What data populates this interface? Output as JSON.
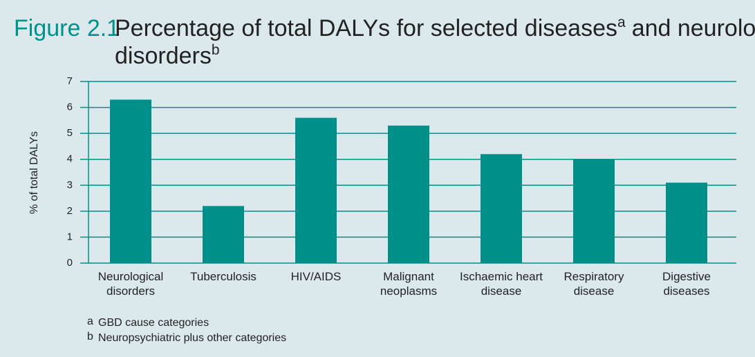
{
  "chart_data": {
    "type": "bar",
    "figure_label": "Figure 2.1",
    "title": {
      "text1": "Percentage of total DALYs for selected diseases",
      "sup1": "a",
      "text2": "and neurological",
      "text3": "disorders",
      "sup2": "b"
    },
    "y_label": "% of total DALYs",
    "categories": [
      "Neurological\ndisorders",
      "Tuberculosis",
      "HIV/AIDS",
      "Malignant\nneoplasms",
      "Ischaemic heart\ndisease",
      "Respiratory\ndisease",
      "Digestive\ndiseases"
    ],
    "values": [
      6.3,
      2.2,
      5.6,
      5.3,
      4.2,
      4.0,
      3.1
    ],
    "color": "#009089",
    "ylim": [
      0,
      7
    ],
    "yticks": [
      0,
      1,
      2,
      3,
      4,
      5,
      6,
      7
    ],
    "grid": true,
    "footnotes": [
      {
        "mark": "a",
        "text": "GBD cause categories"
      },
      {
        "mark": "b",
        "text": "Neuropsychiatric plus other categories"
      }
    ]
  }
}
